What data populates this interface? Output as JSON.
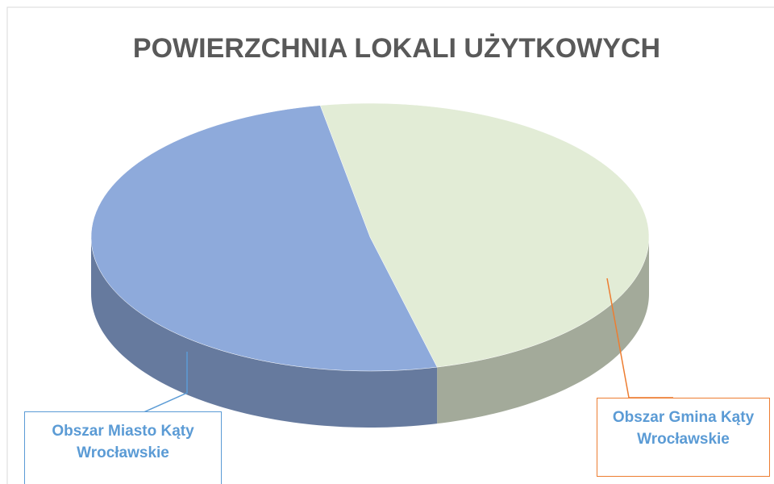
{
  "chart_data": {
    "type": "pie",
    "title": "POWIERZCHNIA LOKALI UŻYTKOWYCH",
    "categories": [
      "Obszar Gmina Kąty Wrocławskie",
      "Obszar Miasto Kąty Wrocławskie"
    ],
    "values": [
      49,
      51
    ],
    "colors": [
      "#e2ecd6",
      "#8eaadb"
    ]
  }
}
